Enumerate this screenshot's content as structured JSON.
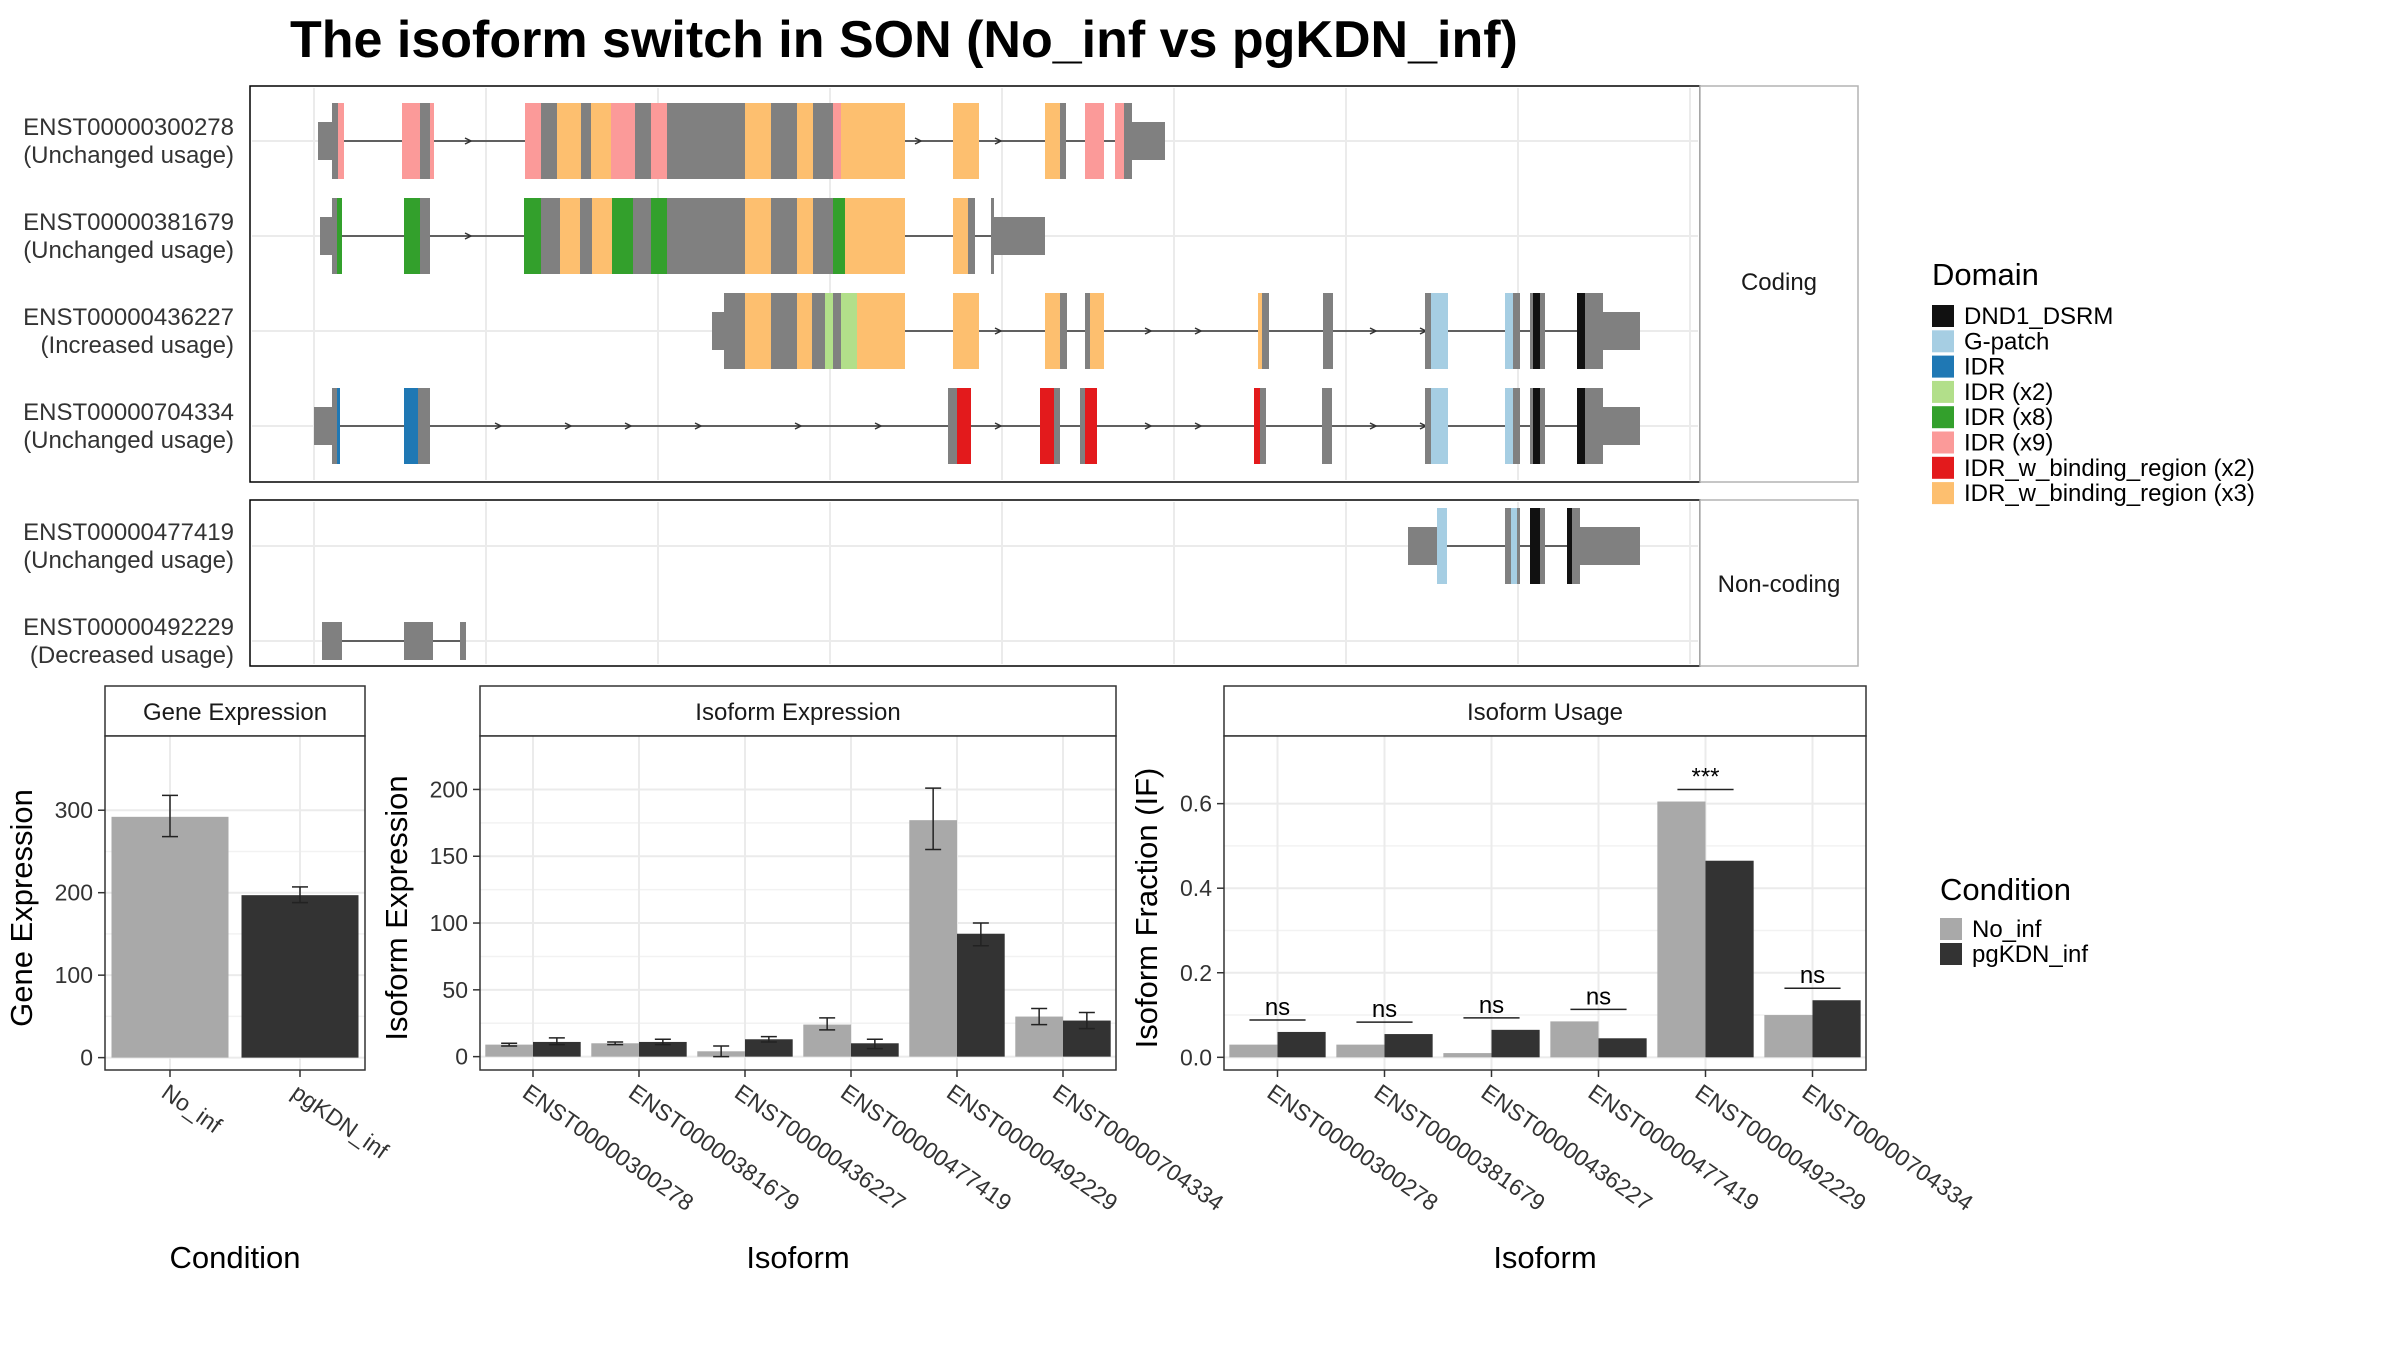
{
  "title": "The isoform switch in SON (No_inf vs pgKDN_inf)",
  "colors": {
    "No_inf": "#A9A9A9",
    "pgKDN_inf": "#333333",
    "DND1_DSRM": "#111111",
    "G-patch": "#A6CEE3",
    "IDR": "#1F78B4",
    "IDR (x2)": "#B2DF8A",
    "IDR (x8)": "#33A02C",
    "IDR (x9)": "#FB9A99",
    "IDR_w_binding_region (x2)": "#E31A1C",
    "IDR_w_binding_region (x3)": "#FDBF6F",
    "exon": "#808080"
  },
  "structure": {
    "facets": [
      "Coding",
      "Non-coding"
    ],
    "isoforms": [
      {
        "id": "ENST00000300278",
        "usage": "(Unchanged usage)",
        "facet": "Coding"
      },
      {
        "id": "ENST00000381679",
        "usage": "(Unchanged usage)",
        "facet": "Coding"
      },
      {
        "id": "ENST00000436227",
        "usage": "(Increased usage)",
        "facet": "Coding"
      },
      {
        "id": "ENST00000704334",
        "usage": "(Unchanged usage)",
        "facet": "Coding"
      },
      {
        "id": "ENST00000477419",
        "usage": "(Unchanged usage)",
        "facet": "Non-coding"
      },
      {
        "id": "ENST00000492229",
        "usage": "(Decreased usage)",
        "facet": "Non-coding"
      }
    ]
  },
  "legend_domain": {
    "title": "Domain",
    "items": [
      "DND1_DSRM",
      "G-patch",
      "IDR",
      "IDR (x2)",
      "IDR (x8)",
      "IDR (x9)",
      "IDR_w_binding_region (x2)",
      "IDR_w_binding_region (x3)"
    ]
  },
  "legend_condition": {
    "title": "Condition",
    "items": [
      "No_inf",
      "pgKDN_inf"
    ]
  },
  "chart_data": [
    {
      "type": "bar",
      "title": "Gene Expression",
      "xlabel": "Condition",
      "ylabel": "Gene Expression",
      "categories": [
        "No_inf",
        "pgKDN_inf"
      ],
      "values": [
        292,
        197
      ],
      "error": [
        [
          268,
          318
        ],
        [
          188,
          207
        ]
      ],
      "ylim": [
        -15,
        390
      ],
      "yticks": [
        0,
        100,
        200,
        300
      ]
    },
    {
      "type": "bar",
      "title": "Isoform Expression",
      "xlabel": "Isoform",
      "ylabel": "Isoform Expression",
      "categories": [
        "ENST00000300278",
        "ENST00000381679",
        "ENST00000436227",
        "ENST00000477419",
        "ENST00000492229",
        "ENST00000704334"
      ],
      "series": [
        {
          "name": "No_inf",
          "values": [
            9,
            10,
            4,
            24,
            177,
            30
          ],
          "error": [
            [
              8,
              10
            ],
            [
              9,
              11
            ],
            [
              0,
              8
            ],
            [
              20,
              29
            ],
            [
              155,
              201
            ],
            [
              24,
              36
            ]
          ]
        },
        {
          "name": "pgKDN_inf",
          "values": [
            11,
            11,
            13,
            10,
            92,
            27
          ],
          "error": [
            [
              9,
              14
            ],
            [
              9,
              13
            ],
            [
              11,
              15
            ],
            [
              6,
              13
            ],
            [
              83,
              100
            ],
            [
              21,
              33
            ]
          ]
        }
      ],
      "ylim": [
        -10,
        240
      ],
      "yticks": [
        0,
        50,
        100,
        150,
        200
      ]
    },
    {
      "type": "bar",
      "title": "Isoform Usage",
      "xlabel": "Isoform",
      "ylabel": "Isoform Fraction (IF)",
      "categories": [
        "ENST00000300278",
        "ENST00000381679",
        "ENST00000436227",
        "ENST00000477419",
        "ENST00000492229",
        "ENST00000704334"
      ],
      "series": [
        {
          "name": "No_inf",
          "values": [
            0.03,
            0.03,
            0.01,
            0.085,
            0.605,
            0.1
          ]
        },
        {
          "name": "pgKDN_inf",
          "values": [
            0.06,
            0.055,
            0.065,
            0.045,
            0.465,
            0.135
          ]
        }
      ],
      "significance": [
        "ns",
        "ns",
        "ns",
        "ns",
        "***",
        "ns"
      ],
      "ylim": [
        -0.03,
        0.76
      ],
      "yticks": [
        0.0,
        0.2,
        0.4,
        0.6
      ],
      "ytick_labels": [
        "0.0",
        "0.2",
        "0.4",
        "0.6"
      ]
    }
  ]
}
